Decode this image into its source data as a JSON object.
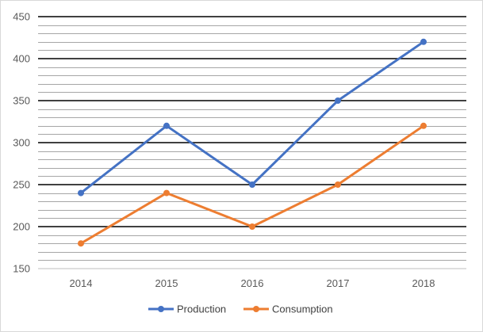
{
  "chart_data": {
    "type": "line",
    "title": "",
    "xlabel": "",
    "ylabel": "",
    "categories": [
      "2014",
      "2015",
      "2016",
      "2017",
      "2018"
    ],
    "ylim": [
      150,
      450
    ],
    "y_ticks": [
      "150",
      "200",
      "250",
      "300",
      "350",
      "400",
      "450"
    ],
    "major_gridline_step": 50,
    "minor_gridline_step": 10,
    "grid": true,
    "legend_position": "bottom",
    "series": [
      {
        "name": "Production",
        "values": [
          240,
          320,
          250,
          350,
          420
        ],
        "color": "#4472C4"
      },
      {
        "name": "Consumption",
        "values": [
          180,
          240,
          200,
          250,
          320
        ],
        "color": "#ED7D31"
      }
    ]
  }
}
